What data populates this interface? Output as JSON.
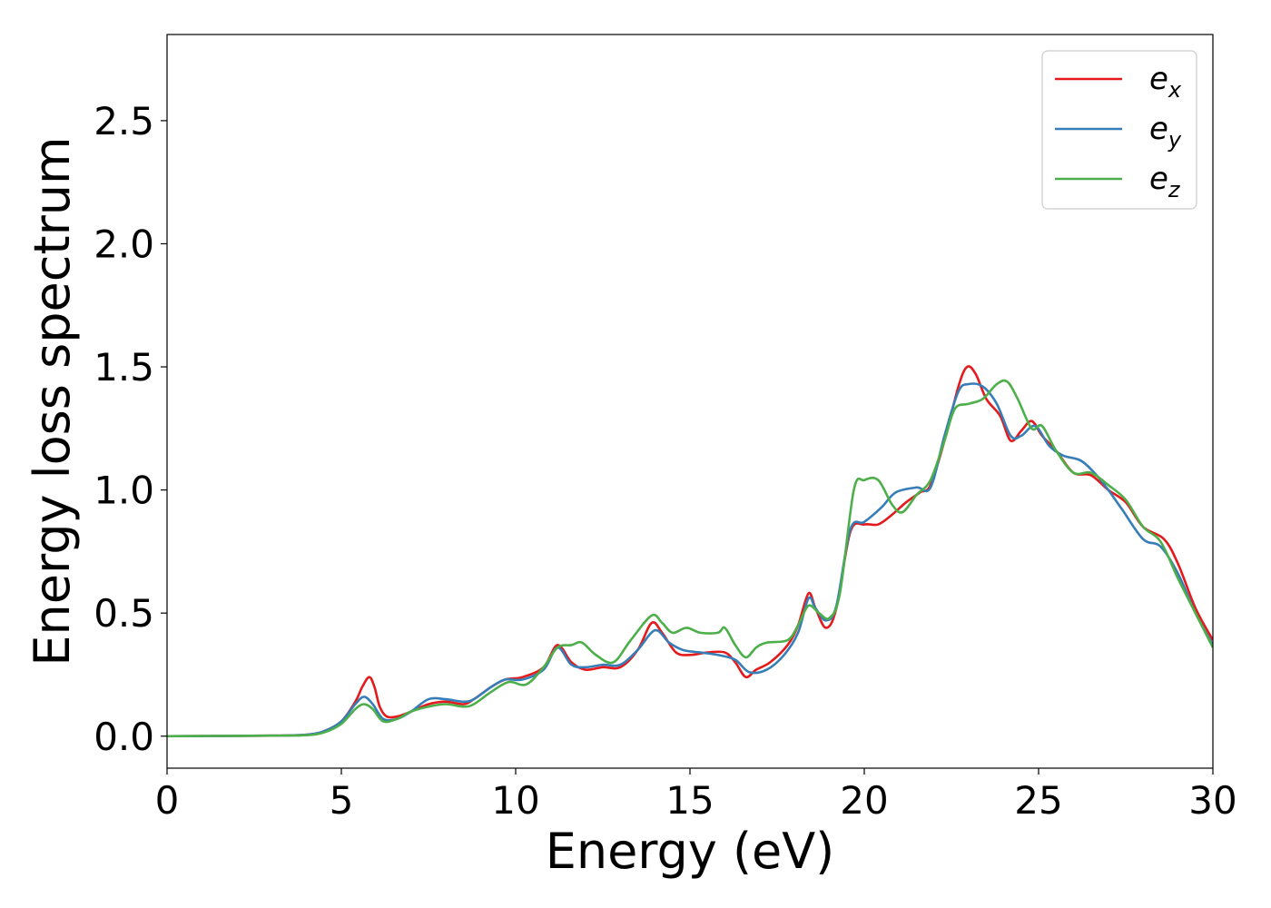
{
  "chart_data": {
    "type": "line",
    "title": "",
    "xlabel": "Energy (eV)",
    "ylabel": "Energy loss spectrum",
    "xlim": [
      0,
      30
    ],
    "ylim": [
      -0.13,
      2.85
    ],
    "xticks": [
      0,
      5,
      10,
      15,
      20,
      25,
      30
    ],
    "xtick_labels": [
      "0",
      "5",
      "10",
      "15",
      "20",
      "25",
      "30"
    ],
    "yticks": [
      0.0,
      0.5,
      1.0,
      1.5,
      2.0,
      2.5
    ],
    "ytick_labels": [
      "0.0",
      "0.5",
      "1.0",
      "1.5",
      "2.0",
      "2.5"
    ],
    "grid": false,
    "legend_position": "top-right",
    "series": [
      {
        "name": "e_x",
        "legend_base": "e",
        "legend_sub": "x",
        "color": "#e41a1c",
        "points": [
          [
            0,
            0
          ],
          [
            3,
            0.002
          ],
          [
            4,
            0.006
          ],
          [
            4.5,
            0.02
          ],
          [
            5,
            0.06
          ],
          [
            5.4,
            0.14
          ],
          [
            5.6,
            0.2
          ],
          [
            5.8,
            0.24
          ],
          [
            5.95,
            0.2
          ],
          [
            6.1,
            0.12
          ],
          [
            6.3,
            0.08
          ],
          [
            6.6,
            0.08
          ],
          [
            7,
            0.1
          ],
          [
            7.5,
            0.13
          ],
          [
            8,
            0.14
          ],
          [
            8.5,
            0.13
          ],
          [
            8.8,
            0.15
          ],
          [
            9.3,
            0.2
          ],
          [
            9.7,
            0.23
          ],
          [
            10.2,
            0.24
          ],
          [
            10.8,
            0.28
          ],
          [
            11.2,
            0.37
          ],
          [
            11.6,
            0.3
          ],
          [
            12,
            0.27
          ],
          [
            12.5,
            0.28
          ],
          [
            13,
            0.28
          ],
          [
            13.5,
            0.35
          ],
          [
            13.9,
            0.46
          ],
          [
            14.2,
            0.42
          ],
          [
            14.6,
            0.34
          ],
          [
            15,
            0.33
          ],
          [
            15.5,
            0.34
          ],
          [
            16,
            0.34
          ],
          [
            16.3,
            0.3
          ],
          [
            16.6,
            0.24
          ],
          [
            16.9,
            0.27
          ],
          [
            17.3,
            0.3
          ],
          [
            17.8,
            0.37
          ],
          [
            18.1,
            0.45
          ],
          [
            18.4,
            0.58
          ],
          [
            18.6,
            0.52
          ],
          [
            18.9,
            0.44
          ],
          [
            19.2,
            0.52
          ],
          [
            19.6,
            0.83
          ],
          [
            20,
            0.86
          ],
          [
            20.4,
            0.86
          ],
          [
            20.8,
            0.9
          ],
          [
            21.2,
            0.95
          ],
          [
            21.6,
            0.99
          ],
          [
            21.9,
            1.02
          ],
          [
            22.3,
            1.2
          ],
          [
            22.7,
            1.42
          ],
          [
            22.95,
            1.5
          ],
          [
            23.2,
            1.47
          ],
          [
            23.5,
            1.37
          ],
          [
            23.9,
            1.3
          ],
          [
            24.2,
            1.2
          ],
          [
            24.5,
            1.24
          ],
          [
            24.8,
            1.28
          ],
          [
            25.1,
            1.22
          ],
          [
            25.5,
            1.16
          ],
          [
            26,
            1.07
          ],
          [
            26.5,
            1.06
          ],
          [
            27,
            1.0
          ],
          [
            27.5,
            0.95
          ],
          [
            28,
            0.85
          ],
          [
            28.6,
            0.8
          ],
          [
            29,
            0.7
          ],
          [
            29.5,
            0.52
          ],
          [
            30,
            0.39
          ]
        ]
      },
      {
        "name": "e_y",
        "legend_base": "e",
        "legend_sub": "y",
        "color": "#377eb8",
        "points": [
          [
            0,
            0
          ],
          [
            3,
            0.002
          ],
          [
            4,
            0.006
          ],
          [
            4.5,
            0.02
          ],
          [
            5,
            0.06
          ],
          [
            5.4,
            0.13
          ],
          [
            5.65,
            0.16
          ],
          [
            5.9,
            0.13
          ],
          [
            6.2,
            0.07
          ],
          [
            6.6,
            0.07
          ],
          [
            7,
            0.1
          ],
          [
            7.5,
            0.15
          ],
          [
            8,
            0.15
          ],
          [
            8.5,
            0.14
          ],
          [
            8.8,
            0.15
          ],
          [
            9.3,
            0.2
          ],
          [
            9.7,
            0.23
          ],
          [
            10.2,
            0.23
          ],
          [
            10.8,
            0.27
          ],
          [
            11.2,
            0.36
          ],
          [
            11.6,
            0.29
          ],
          [
            12,
            0.28
          ],
          [
            12.5,
            0.29
          ],
          [
            13,
            0.29
          ],
          [
            13.5,
            0.35
          ],
          [
            14,
            0.43
          ],
          [
            14.4,
            0.38
          ],
          [
            14.8,
            0.35
          ],
          [
            15.3,
            0.34
          ],
          [
            15.8,
            0.33
          ],
          [
            16.3,
            0.31
          ],
          [
            16.7,
            0.26
          ],
          [
            17.2,
            0.27
          ],
          [
            17.7,
            0.33
          ],
          [
            18.1,
            0.42
          ],
          [
            18.4,
            0.56
          ],
          [
            18.6,
            0.52
          ],
          [
            18.9,
            0.47
          ],
          [
            19.2,
            0.53
          ],
          [
            19.6,
            0.84
          ],
          [
            20,
            0.87
          ],
          [
            20.5,
            0.93
          ],
          [
            20.9,
            0.99
          ],
          [
            21.5,
            1.01
          ],
          [
            21.9,
            1.01
          ],
          [
            22.3,
            1.22
          ],
          [
            22.7,
            1.4
          ],
          [
            23,
            1.43
          ],
          [
            23.4,
            1.42
          ],
          [
            23.8,
            1.35
          ],
          [
            24.2,
            1.22
          ],
          [
            24.5,
            1.22
          ],
          [
            24.9,
            1.26
          ],
          [
            25.3,
            1.18
          ],
          [
            25.7,
            1.14
          ],
          [
            26.2,
            1.12
          ],
          [
            26.6,
            1.07
          ],
          [
            27,
            1.0
          ],
          [
            27.4,
            0.92
          ],
          [
            28,
            0.8
          ],
          [
            28.5,
            0.77
          ],
          [
            29,
            0.66
          ],
          [
            29.5,
            0.5
          ],
          [
            30,
            0.37
          ]
        ]
      },
      {
        "name": "e_z",
        "legend_base": "e",
        "legend_sub": "z",
        "color": "#4daf4a",
        "points": [
          [
            0,
            0
          ],
          [
            3,
            0.002
          ],
          [
            4,
            0.004
          ],
          [
            4.5,
            0.015
          ],
          [
            5,
            0.05
          ],
          [
            5.4,
            0.11
          ],
          [
            5.65,
            0.13
          ],
          [
            5.9,
            0.11
          ],
          [
            6.2,
            0.06
          ],
          [
            6.6,
            0.07
          ],
          [
            7,
            0.1
          ],
          [
            7.5,
            0.12
          ],
          [
            8,
            0.13
          ],
          [
            8.5,
            0.12
          ],
          [
            8.8,
            0.13
          ],
          [
            9.3,
            0.18
          ],
          [
            9.8,
            0.22
          ],
          [
            10.3,
            0.21
          ],
          [
            10.8,
            0.28
          ],
          [
            11.2,
            0.36
          ],
          [
            11.6,
            0.37
          ],
          [
            11.9,
            0.38
          ],
          [
            12.3,
            0.33
          ],
          [
            12.8,
            0.3
          ],
          [
            13.3,
            0.39
          ],
          [
            13.9,
            0.49
          ],
          [
            14.2,
            0.46
          ],
          [
            14.5,
            0.42
          ],
          [
            14.9,
            0.44
          ],
          [
            15.3,
            0.42
          ],
          [
            15.8,
            0.42
          ],
          [
            16.0,
            0.44
          ],
          [
            16.3,
            0.37
          ],
          [
            16.6,
            0.32
          ],
          [
            16.9,
            0.36
          ],
          [
            17.2,
            0.38
          ],
          [
            17.8,
            0.39
          ],
          [
            18.1,
            0.45
          ],
          [
            18.4,
            0.53
          ],
          [
            18.7,
            0.5
          ],
          [
            19.0,
            0.48
          ],
          [
            19.3,
            0.58
          ],
          [
            19.7,
            1.0
          ],
          [
            20,
            1.04
          ],
          [
            20.4,
            1.04
          ],
          [
            20.8,
            0.94
          ],
          [
            21.1,
            0.91
          ],
          [
            21.5,
            0.98
          ],
          [
            21.9,
            1.04
          ],
          [
            22.3,
            1.2
          ],
          [
            22.6,
            1.33
          ],
          [
            23,
            1.35
          ],
          [
            23.4,
            1.37
          ],
          [
            23.8,
            1.43
          ],
          [
            24.1,
            1.44
          ],
          [
            24.4,
            1.37
          ],
          [
            24.8,
            1.25
          ],
          [
            25.1,
            1.26
          ],
          [
            25.5,
            1.16
          ],
          [
            26,
            1.07
          ],
          [
            26.5,
            1.07
          ],
          [
            27,
            1.02
          ],
          [
            27.5,
            0.96
          ],
          [
            28,
            0.85
          ],
          [
            28.5,
            0.79
          ],
          [
            29,
            0.64
          ],
          [
            29.5,
            0.5
          ],
          [
            30,
            0.36
          ]
        ]
      }
    ]
  }
}
